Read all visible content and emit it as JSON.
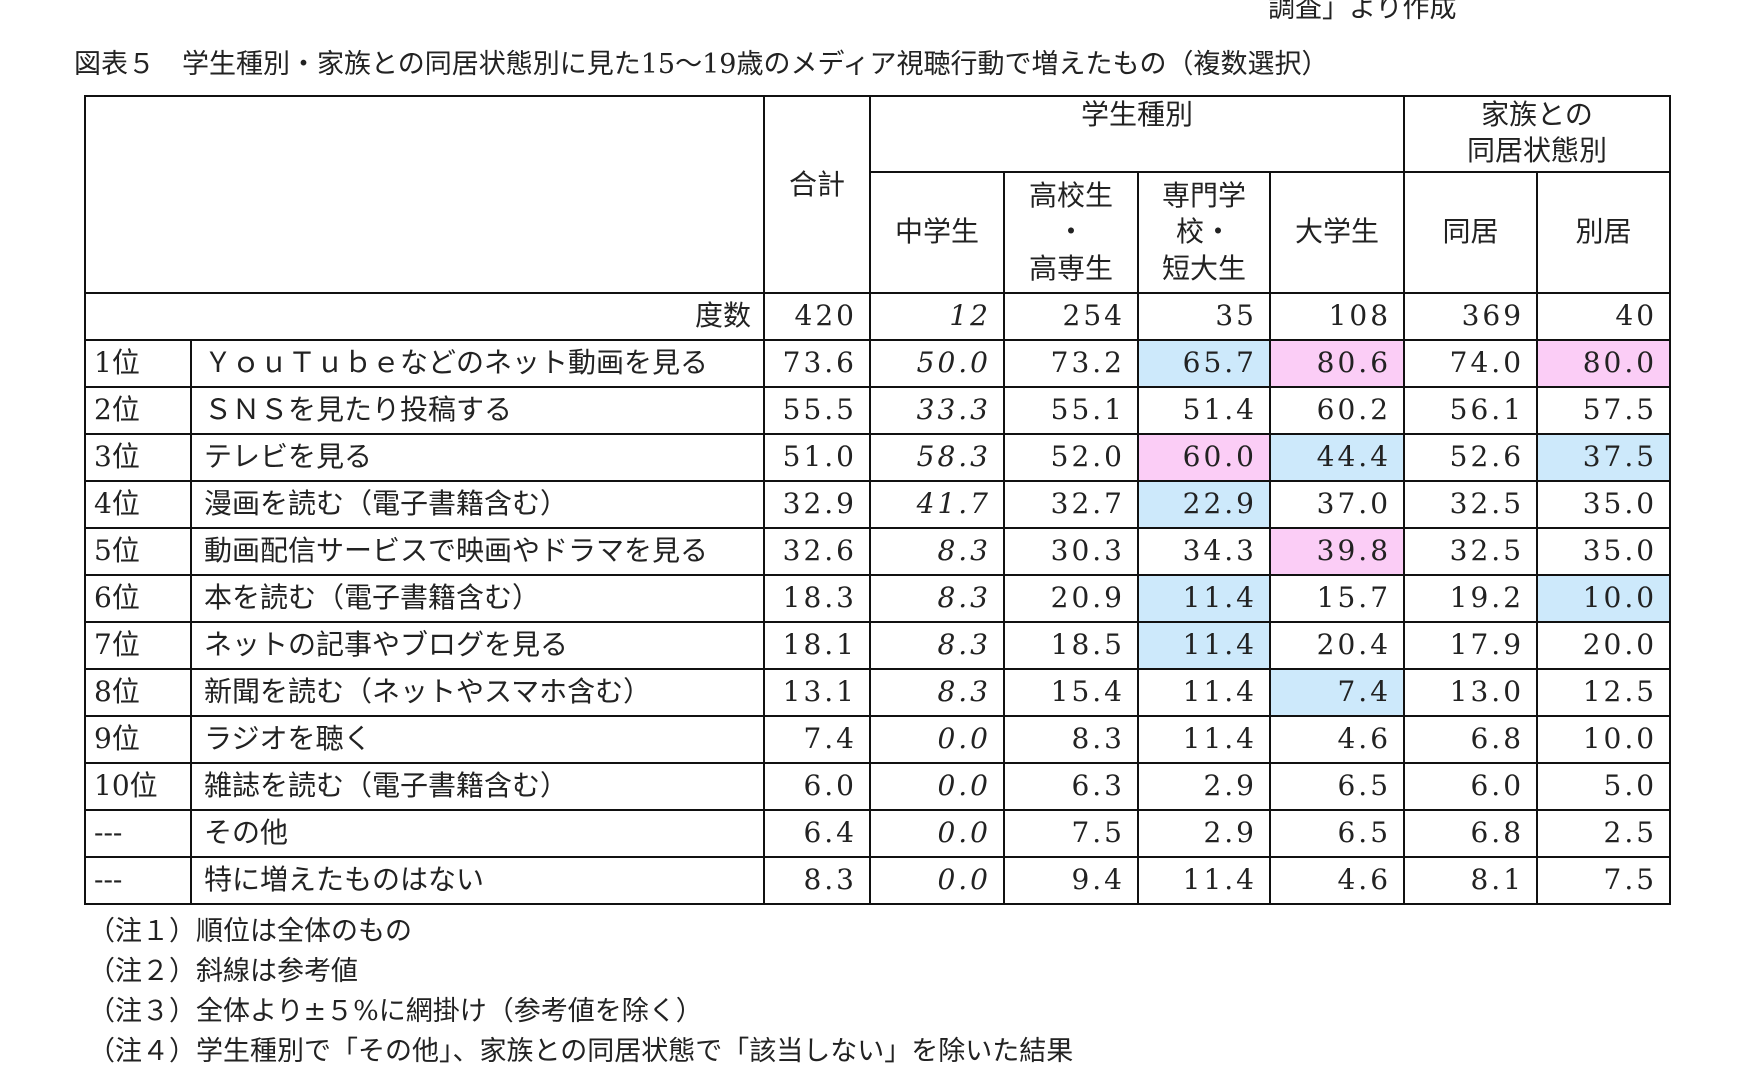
{
  "top_note": "調査」より作成",
  "title": "図表５　学生種別・家族との同居状態別に見た15～19歳のメディア視聴行動で増えたもの（複数選択）",
  "table": {
    "total_header": "合計",
    "groups": [
      {
        "label": "学生種別",
        "columns": [
          "中学生",
          "高校生\n・\n高専生",
          "専門学\n校・\n短大生",
          "大学生"
        ]
      },
      {
        "label": "家族との\n同居状態別",
        "columns": [
          "同居",
          "別居"
        ]
      }
    ],
    "counts": {
      "label": "度数",
      "values": [
        "420",
        "12",
        "254",
        "35",
        "108",
        "369",
        "40"
      ]
    },
    "rows": [
      {
        "rank": "1位",
        "label": "ＹｏｕＴｕｂｅなどのネット動画を見る",
        "values": [
          "73.6",
          "50.0",
          "73.2",
          "65.7",
          "80.6",
          "74.0",
          "80.0"
        ],
        "fills": [
          null,
          null,
          null,
          "#cde9fb",
          "#fbcdf6",
          null,
          "#fbcdf6"
        ]
      },
      {
        "rank": "2位",
        "label": "ＳＮＳを見たり投稿する",
        "values": [
          "55.5",
          "33.3",
          "55.1",
          "51.4",
          "60.2",
          "56.1",
          "57.5"
        ]
      },
      {
        "rank": "3位",
        "label": "テレビを見る",
        "values": [
          "51.0",
          "58.3",
          "52.0",
          "60.0",
          "44.4",
          "52.6",
          "37.5"
        ],
        "fills": [
          null,
          null,
          null,
          "#fbcdf6",
          "#cde9fb",
          null,
          "#cde9fb"
        ]
      },
      {
        "rank": "4位",
        "label": "漫画を読む（電子書籍含む）",
        "values": [
          "32.9",
          "41.7",
          "32.7",
          "22.9",
          "37.0",
          "32.5",
          "35.0"
        ],
        "fills": [
          null,
          null,
          null,
          "#cde9fb",
          null,
          null,
          null
        ]
      },
      {
        "rank": "5位",
        "label": "動画配信サービスで映画やドラマを見る",
        "values": [
          "32.6",
          "8.3",
          "30.3",
          "34.3",
          "39.8",
          "32.5",
          "35.0"
        ],
        "fills": [
          null,
          null,
          null,
          null,
          "#fbcdf6",
          null,
          null
        ]
      },
      {
        "rank": "6位",
        "label": "本を読む（電子書籍含む）",
        "values": [
          "18.3",
          "8.3",
          "20.9",
          "11.4",
          "15.7",
          "19.2",
          "10.0"
        ],
        "fills": [
          null,
          null,
          null,
          "#cde9fb",
          null,
          null,
          "#cde9fb"
        ]
      },
      {
        "rank": "7位",
        "label": "ネットの記事やブログを見る",
        "values": [
          "18.1",
          "8.3",
          "18.5",
          "11.4",
          "20.4",
          "17.9",
          "20.0"
        ],
        "fills": [
          null,
          null,
          null,
          "#cde9fb",
          null,
          null,
          null
        ]
      },
      {
        "rank": "8位",
        "label": "新聞を読む（ネットやスマホ含む）",
        "values": [
          "13.1",
          "8.3",
          "15.4",
          "11.4",
          "7.4",
          "13.0",
          "12.5"
        ],
        "fills": [
          null,
          null,
          null,
          null,
          "#cde9fb",
          null,
          null
        ]
      },
      {
        "rank": "9位",
        "label": "ラジオを聴く",
        "values": [
          "7.4",
          "0.0",
          "8.3",
          "11.4",
          "4.6",
          "6.8",
          "10.0"
        ]
      },
      {
        "rank": "10位",
        "label": "雑誌を読む（電子書籍含む）",
        "values": [
          "6.0",
          "0.0",
          "6.3",
          "2.9",
          "6.5",
          "6.0",
          "5.0"
        ]
      },
      {
        "rank": "---",
        "label": "その他",
        "values": [
          "6.4",
          "0.0",
          "7.5",
          "2.9",
          "6.5",
          "6.8",
          "2.5"
        ]
      },
      {
        "rank": "---",
        "label": "特に増えたものはない",
        "values": [
          "8.3",
          "0.0",
          "9.4",
          "11.4",
          "4.6",
          "8.1",
          "7.5"
        ]
      }
    ]
  },
  "notes": [
    "（注１）順位は全体のもの",
    "（注２）斜線は参考値",
    "（注３）全体より±５%に網掛け（参考値を除く）",
    "（注４）学生種別で「その他」、家族との同居状態で「該当しない」を除いた結果"
  ]
}
